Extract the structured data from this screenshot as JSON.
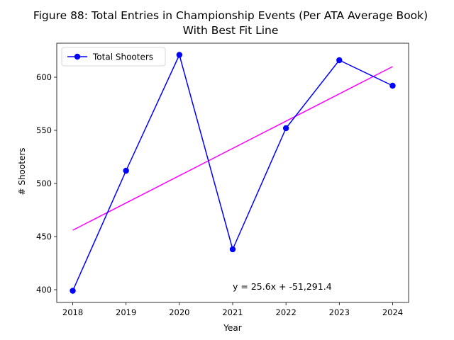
{
  "chart_data": {
    "type": "line",
    "title_lines": [
      "Figure 88: Total Entries in Championship Events (Per ATA Average Book)",
      "With Best Fit Line"
    ],
    "xlabel": "Year",
    "ylabel": "# Shooters",
    "x": [
      2018,
      2019,
      2020,
      2021,
      2022,
      2023,
      2024
    ],
    "x_ticks": [
      "2018",
      "2019",
      "2020",
      "2021",
      "2022",
      "2023",
      "2024"
    ],
    "y_ticks": [
      400,
      450,
      500,
      550,
      600
    ],
    "y_tick_labels": [
      "400",
      "450",
      "500",
      "550",
      "600"
    ],
    "xlim": [
      2017.7,
      2024.3
    ],
    "ylim": [
      388,
      632
    ],
    "grid": false,
    "legend_position": "top-left",
    "series": [
      {
        "name": "Total Shooters",
        "color": "#0000ff",
        "marker": "circle",
        "values": [
          399,
          512,
          621,
          438,
          552,
          616,
          592
        ]
      }
    ],
    "fit_line": {
      "color": "#ff00ff",
      "x": [
        2018,
        2024
      ],
      "values": [
        456,
        610
      ]
    },
    "annotation": {
      "text": "y = 25.6x + -51,291.4",
      "x": 2021,
      "y": 400
    }
  }
}
